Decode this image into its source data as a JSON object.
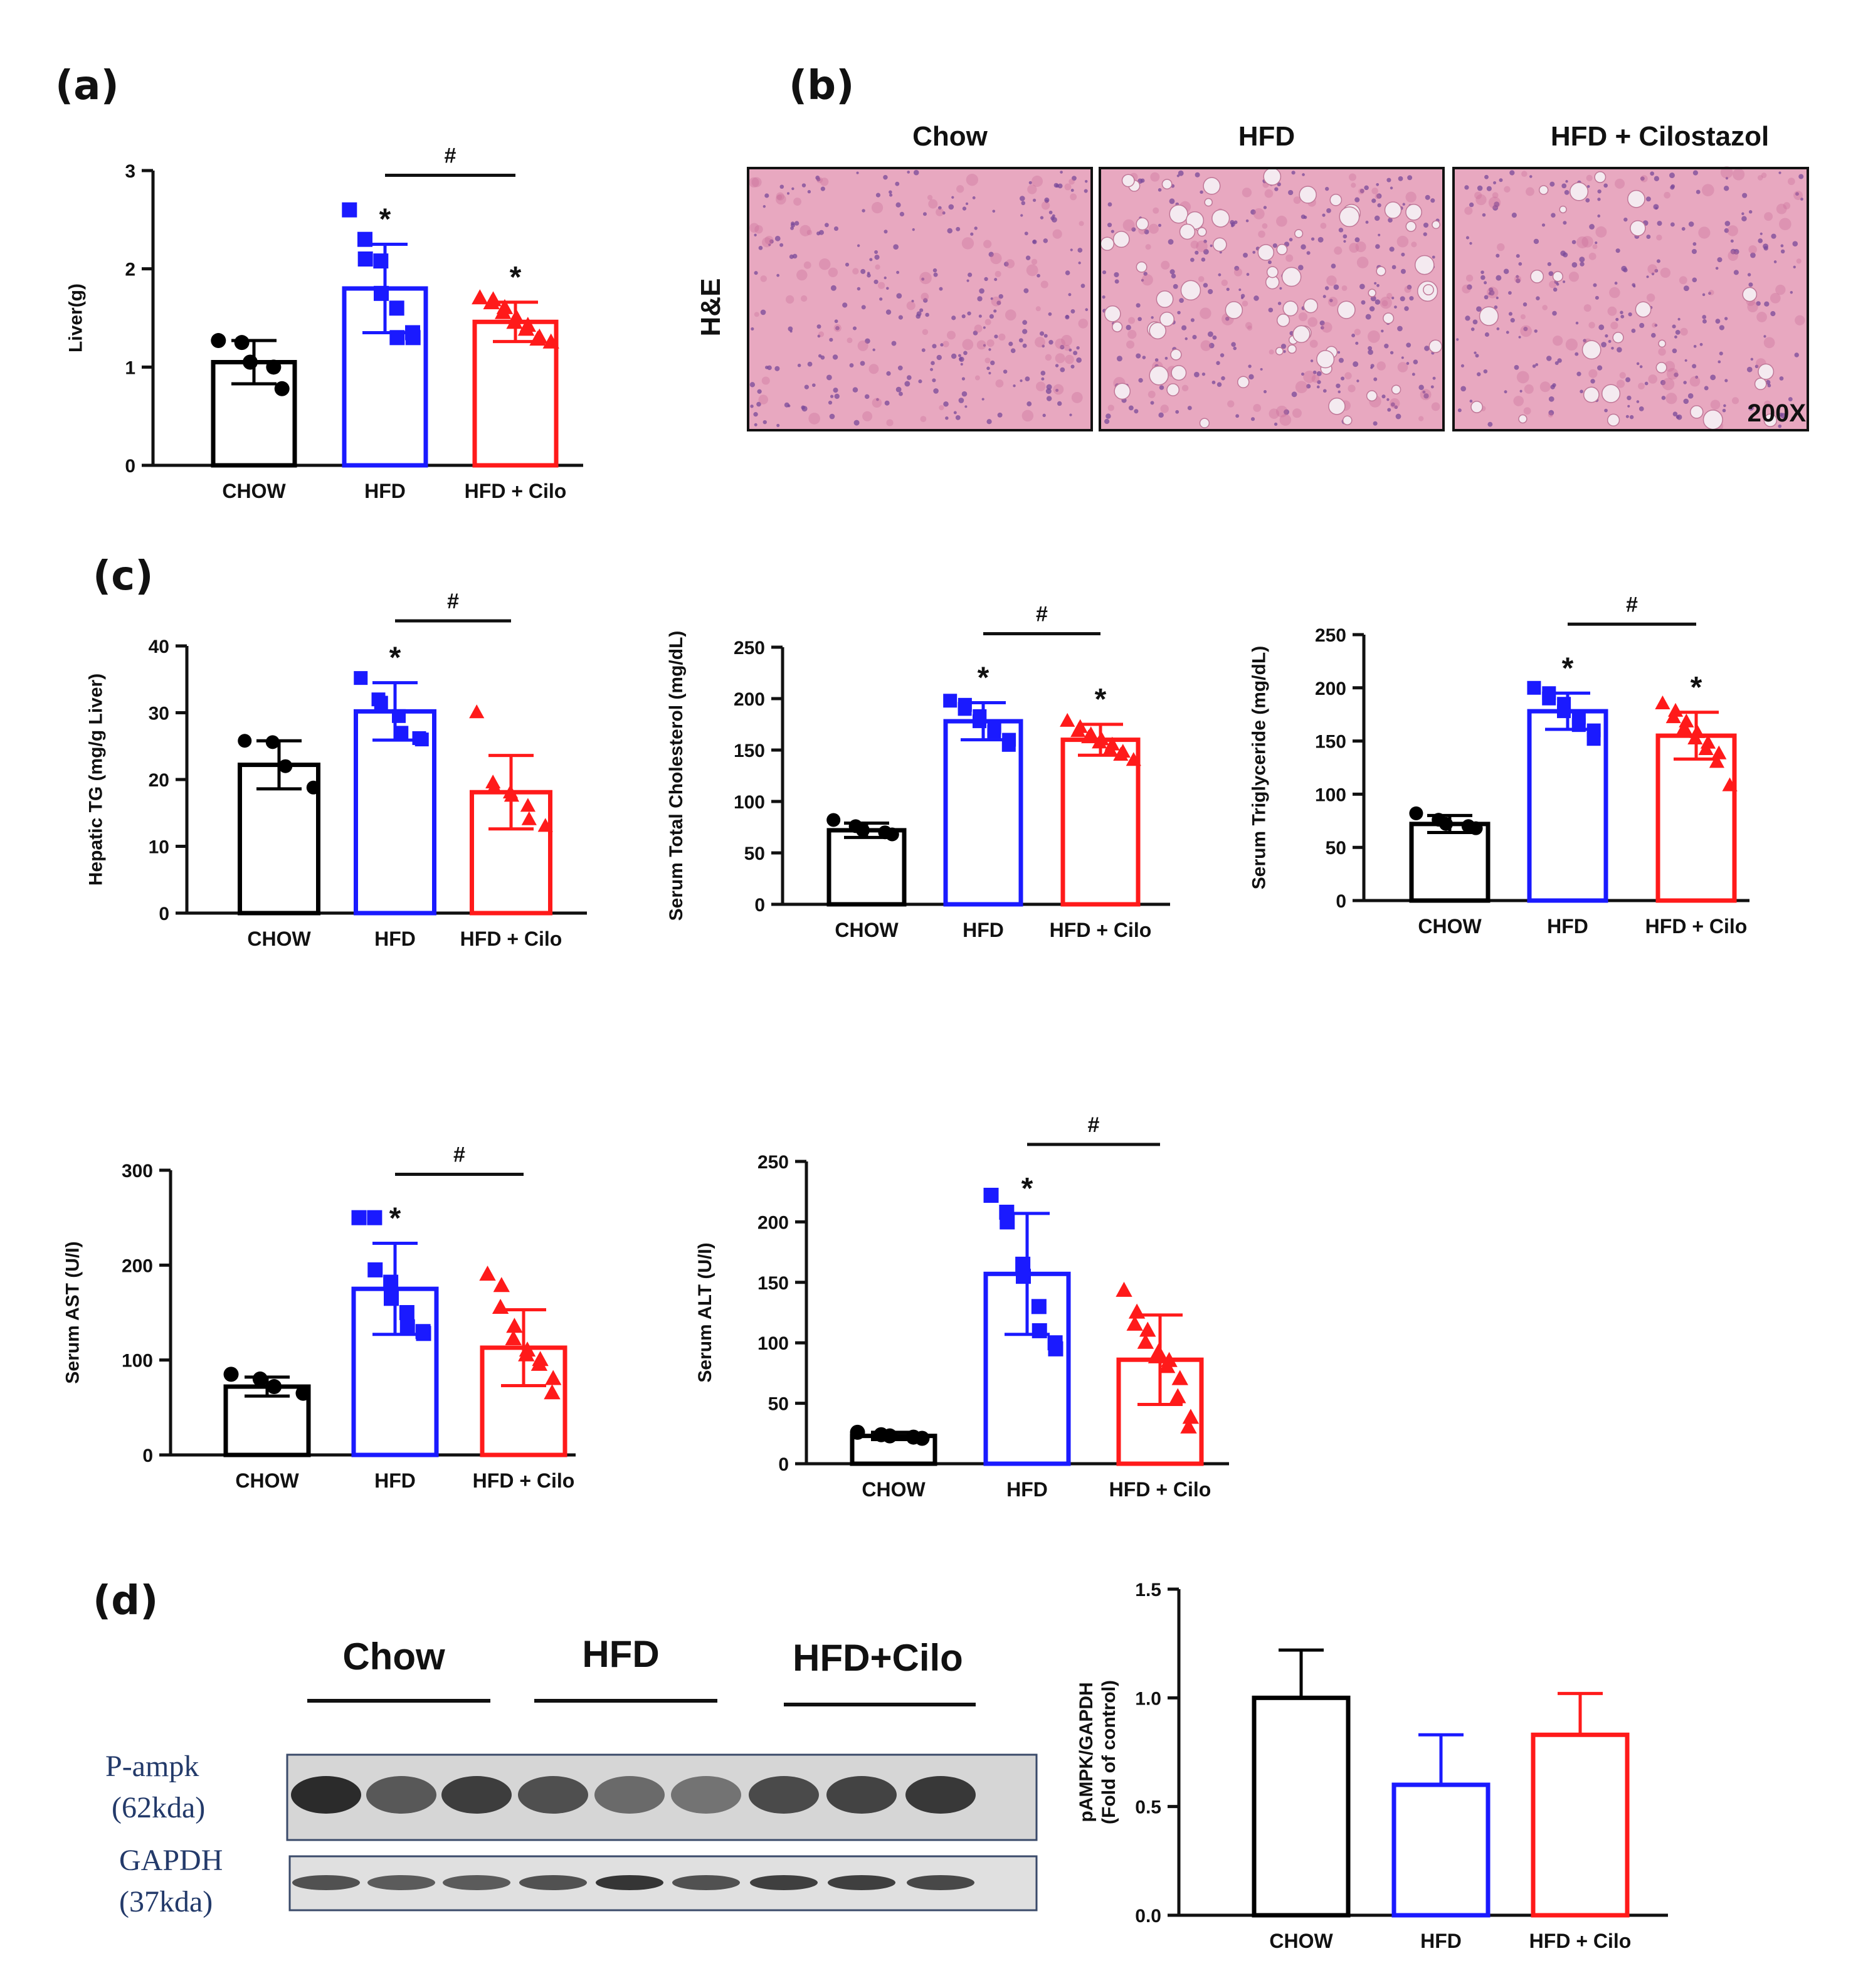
{
  "colors": {
    "chow": "#000000",
    "hfd": "#1a1aff",
    "cilo": "#ff1a1a",
    "tissue": "#e8a8c0",
    "tissue_dark": "#c86c98"
  },
  "panels": {
    "a": "(a)",
    "b": "(b)",
    "c": "(c)",
    "d": "(d)"
  },
  "histology": {
    "columns": [
      "Chow",
      "HFD",
      "HFD + Cilostazol"
    ],
    "row_label": "H&E",
    "magnification": "200X"
  },
  "blot": {
    "groups": [
      "Chow",
      "HFD",
      "HFD+Cilo"
    ],
    "rows": [
      {
        "label_line1": "P-ampk",
        "label_line2": "(62kda)"
      },
      {
        "label_line1": "GAPDH",
        "label_line2": "(37kda)"
      }
    ]
  },
  "chart_data": [
    {
      "id": "liver",
      "type": "bar",
      "categories": [
        "CHOW",
        "HFD",
        "HFD + Cilo"
      ],
      "ylabel": "Liver(g)",
      "ylim": [
        0,
        3
      ],
      "yticks": [
        0,
        1,
        2,
        3
      ],
      "tick_labels": [
        "0",
        "1",
        "2",
        "3"
      ],
      "values": [
        1.05,
        1.8,
        1.46
      ],
      "errors": [
        0.22,
        0.45,
        0.2
      ],
      "points": [
        [
          1.27,
          1.25,
          1.05,
          1.0,
          0.78
        ],
        [
          2.6,
          2.3,
          2.1,
          2.08,
          1.75,
          1.6,
          1.3,
          1.35,
          1.3
        ],
        [
          1.7,
          1.68,
          1.65,
          1.6,
          1.55,
          1.5,
          1.45,
          1.42,
          1.38,
          1.3,
          1.28,
          1.25
        ]
      ],
      "stars": [
        "",
        "*",
        "*"
      ],
      "hash": "#"
    },
    {
      "id": "hepatic-tg",
      "type": "bar",
      "categories": [
        "CHOW",
        "HFD",
        "HFD + Cilo"
      ],
      "ylabel": "Hepatic TG (mg/g Liver)",
      "ylim": [
        0,
        40
      ],
      "yticks": [
        0,
        10,
        20,
        30,
        40
      ],
      "tick_labels": [
        "0",
        "10",
        "20",
        "30",
        "40"
      ],
      "values": [
        22.2,
        30.2,
        18.1
      ],
      "errors": [
        3.6,
        4.3,
        5.5
      ],
      "points": [
        [
          25.8,
          25.6,
          22.0,
          18.8
        ],
        [
          35.2,
          32.0,
          31.5,
          29.5,
          27.0,
          26.2,
          26.0
        ],
        [
          30.0,
          19.5,
          18.8,
          18.0,
          17.5,
          16.0,
          14.0,
          13.0
        ]
      ],
      "stars": [
        "",
        "*",
        ""
      ],
      "hash": "#"
    },
    {
      "id": "total-chol",
      "type": "bar",
      "categories": [
        "CHOW",
        "HFD",
        "HFD + Cilo"
      ],
      "ylabel": "Serum Total Cholesterol (mg/dL)",
      "ylim": [
        0,
        250
      ],
      "yticks": [
        0,
        50,
        100,
        150,
        200,
        250
      ],
      "tick_labels": [
        "0",
        "50",
        "100",
        "150",
        "200",
        "250"
      ],
      "values": [
        72,
        178,
        160
      ],
      "errors": [
        7,
        18,
        15
      ],
      "points": [
        [
          82,
          76,
          72,
          70,
          68
        ],
        [
          198,
          194,
          190,
          183,
          178,
          172,
          168,
          160,
          155
        ],
        [
          178,
          172,
          168,
          165,
          162,
          160,
          157,
          155,
          150,
          148,
          145,
          140
        ]
      ],
      "stars": [
        "",
        "*",
        "*"
      ],
      "hash": "#"
    },
    {
      "id": "triglyceride",
      "type": "bar",
      "categories": [
        "CHOW",
        "HFD",
        "HFD + Cilo"
      ],
      "ylabel": "Serum  Triglyceride (mg/dL)",
      "ylim": [
        0,
        250
      ],
      "yticks": [
        0,
        50,
        100,
        150,
        200,
        250
      ],
      "tick_labels": [
        "0",
        "50",
        "100",
        "150",
        "200",
        "250"
      ],
      "values": [
        72,
        178,
        155
      ],
      "errors": [
        8,
        17,
        22
      ],
      "points": [
        [
          82,
          76,
          72,
          70,
          68
        ],
        [
          200,
          195,
          190,
          185,
          178,
          172,
          165,
          160,
          152
        ],
        [
          185,
          178,
          172,
          168,
          162,
          158,
          152,
          148,
          142,
          138,
          130,
          108
        ]
      ],
      "stars": [
        "",
        "*",
        "*"
      ],
      "hash": "#"
    },
    {
      "id": "ast",
      "type": "bar",
      "categories": [
        "CHOW",
        "HFD",
        "HFD + Cilo"
      ],
      "ylabel": "Serum AST (U/I)",
      "ylim": [
        0,
        300
      ],
      "yticks": [
        0,
        100,
        200,
        300
      ],
      "tick_labels": [
        "0",
        "100",
        "200",
        "300"
      ],
      "values": [
        72,
        175,
        113
      ],
      "errors": [
        10,
        48,
        40
      ],
      "points": [
        [
          85,
          80,
          72,
          65
        ],
        [
          250,
          250,
          195,
          182,
          165,
          150,
          135,
          130,
          128
        ],
        [
          190,
          178,
          155,
          135,
          122,
          110,
          105,
          100,
          95,
          80,
          65
        ]
      ],
      "stars": [
        "",
        "*",
        ""
      ],
      "hash": "#"
    },
    {
      "id": "alt",
      "type": "bar",
      "categories": [
        "CHOW",
        "HFD",
        "HFD + Cilo"
      ],
      "ylabel": "Serum ALT (U/I)",
      "ylim": [
        0,
        250
      ],
      "yticks": [
        0,
        50,
        100,
        150,
        200,
        250
      ],
      "tick_labels": [
        "0",
        "50",
        "100",
        "150",
        "200",
        "250"
      ],
      "values": [
        23,
        157,
        86
      ],
      "errors": [
        3,
        50,
        37
      ],
      "points": [
        [
          26,
          24,
          23,
          22,
          21
        ],
        [
          222,
          208,
          200,
          165,
          155,
          130,
          110,
          100,
          95
        ],
        [
          143,
          125,
          115,
          110,
          100,
          92,
          88,
          85,
          80,
          70,
          55,
          38,
          30
        ]
      ],
      "stars": [
        "",
        "*",
        ""
      ],
      "hash": "#"
    },
    {
      "id": "pampk",
      "type": "bar",
      "categories": [
        "CHOW",
        "HFD",
        "HFD + Cilo"
      ],
      "ylabel": "pAMPK/GAPDH",
      "ylabel2": "(Fold of control)",
      "ylim": [
        0,
        1.5
      ],
      "yticks": [
        0,
        0.5,
        1.0,
        1.5
      ],
      "tick_labels": [
        "0.0",
        "0.5",
        "1.0",
        "1.5"
      ],
      "values": [
        1.0,
        0.6,
        0.83
      ],
      "errors": [
        0.22,
        0.23,
        0.19
      ],
      "points": [
        [],
        [],
        []
      ],
      "stars": [
        "",
        "",
        ""
      ],
      "hash": ""
    }
  ]
}
